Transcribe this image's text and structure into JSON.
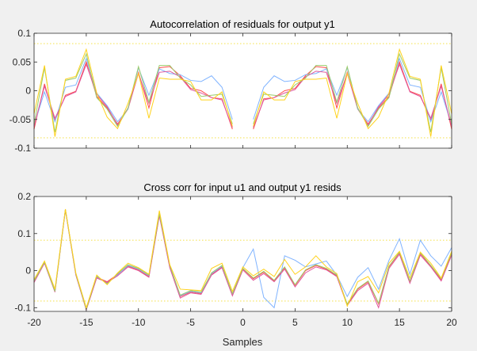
{
  "colors": {
    "background": "#f0f0f0",
    "axes_face": "#ffffff",
    "axis": "#262626",
    "confidence_line": "#f5e45a"
  },
  "chart_data": [
    {
      "type": "line",
      "title": "Autocorrelation of residuals for output y1",
      "xlabel": "",
      "ylabel": "",
      "xlim": [
        -20,
        20
      ],
      "ylim": [
        -0.1,
        0.1
      ],
      "xticks": [],
      "yticks": [
        -0.1,
        -0.05,
        0,
        0.05,
        0.1
      ],
      "ytick_labels": [
        "-0.1",
        "-0.05",
        "0",
        "0.05",
        "0.1"
      ],
      "grid": false,
      "confidence_bound": 0.082,
      "series_gap_x": 0,
      "x": [
        -20,
        -19,
        -18,
        -17,
        -16,
        -15,
        -14,
        -13,
        -12,
        -11,
        -10,
        -9,
        -8,
        -7,
        -6,
        -5,
        -4,
        -3,
        -2,
        -1,
        0,
        1,
        2,
        3,
        4,
        5,
        6,
        7,
        8,
        9,
        10,
        11,
        12,
        13,
        14,
        15,
        16,
        17,
        18,
        19,
        20
      ],
      "series": [
        {
          "color": "#ff4d4d",
          "values": [
            -0.067,
            0.012,
            -0.052,
            -0.008,
            -0.001,
            0.05,
            -0.01,
            -0.03,
            -0.058,
            -0.032,
            0.032,
            -0.03,
            0.04,
            0.042,
            0.026,
            0.004,
            0.0,
            -0.012,
            -0.014,
            -0.067,
            null,
            -0.067,
            -0.014,
            -0.012,
            0.0,
            0.004,
            0.026,
            0.042,
            0.04,
            -0.03,
            0.032,
            -0.032,
            -0.058,
            -0.03,
            -0.01,
            0.05,
            -0.001,
            -0.008,
            -0.052,
            0.012,
            -0.067
          ]
        },
        {
          "color": "#7fb3ff",
          "values": [
            -0.06,
            -0.002,
            -0.054,
            0.006,
            0.01,
            0.056,
            -0.004,
            -0.026,
            -0.054,
            -0.032,
            0.04,
            -0.008,
            0.038,
            0.03,
            0.028,
            0.018,
            0.016,
            0.026,
            0.006,
            -0.05,
            null,
            -0.05,
            0.006,
            0.026,
            0.016,
            0.018,
            0.028,
            0.03,
            0.038,
            -0.008,
            0.04,
            -0.032,
            -0.054,
            -0.026,
            -0.004,
            0.056,
            0.01,
            0.006,
            -0.054,
            -0.002,
            -0.06
          ]
        },
        {
          "color": "#e0559a",
          "values": [
            -0.062,
            0.008,
            -0.048,
            -0.01,
            -0.002,
            0.046,
            -0.006,
            -0.028,
            -0.06,
            -0.03,
            0.03,
            -0.022,
            0.032,
            0.034,
            0.024,
            0.002,
            -0.004,
            -0.012,
            -0.016,
            -0.064,
            null,
            -0.064,
            -0.016,
            -0.012,
            -0.004,
            0.002,
            0.024,
            0.034,
            0.032,
            -0.022,
            0.03,
            -0.03,
            -0.06,
            -0.028,
            -0.006,
            0.046,
            -0.002,
            -0.01,
            -0.048,
            0.008,
            -0.062
          ]
        },
        {
          "color": "#9bcc6b",
          "values": [
            -0.058,
            0.04,
            -0.072,
            0.018,
            0.022,
            0.064,
            -0.012,
            -0.032,
            -0.062,
            -0.03,
            0.042,
            -0.02,
            0.044,
            0.044,
            0.022,
            0.01,
            -0.01,
            -0.008,
            -0.006,
            -0.058,
            null,
            -0.058,
            -0.006,
            -0.008,
            -0.01,
            0.01,
            0.022,
            0.044,
            0.044,
            -0.02,
            0.042,
            -0.03,
            -0.062,
            -0.032,
            -0.012,
            0.064,
            0.022,
            0.018,
            -0.072,
            0.04,
            -0.058
          ]
        },
        {
          "color": "#ffd21a",
          "values": [
            -0.04,
            0.044,
            -0.08,
            0.02,
            0.025,
            0.072,
            -0.004,
            -0.046,
            -0.066,
            -0.022,
            0.03,
            -0.048,
            0.022,
            0.02,
            0.02,
            0.016,
            -0.016,
            -0.016,
            -0.002,
            -0.062,
            null,
            -0.062,
            -0.002,
            -0.016,
            -0.016,
            0.016,
            0.02,
            0.02,
            0.022,
            -0.048,
            0.03,
            -0.022,
            -0.066,
            -0.046,
            -0.004,
            0.072,
            0.025,
            0.02,
            -0.08,
            0.044,
            -0.04
          ]
        }
      ]
    },
    {
      "type": "line",
      "title": "Cross corr for input u1 and output y1 resids",
      "xlabel": "Samples",
      "ylabel": "",
      "xlim": [
        -20,
        20
      ],
      "ylim": [
        -0.11,
        0.2
      ],
      "xticks": [
        -20,
        -15,
        -10,
        -5,
        0,
        5,
        10,
        15,
        20
      ],
      "xtick_labels": [
        "-20",
        "-15",
        "-10",
        "-5",
        "0",
        "5",
        "10",
        "15",
        "20"
      ],
      "yticks": [
        -0.1,
        0,
        0.1,
        0.2
      ],
      "ytick_labels": [
        "-0.1",
        "0",
        "0.1",
        "0.2"
      ],
      "grid": false,
      "confidence_bound": 0.082,
      "x": [
        -20,
        -19,
        -18,
        -17,
        -16,
        -15,
        -14,
        -13,
        -12,
        -11,
        -10,
        -9,
        -8,
        -7,
        -6,
        -5,
        -4,
        -3,
        -2,
        -1,
        0,
        1,
        2,
        3,
        4,
        5,
        6,
        7,
        8,
        9,
        10,
        11,
        12,
        13,
        14,
        15,
        16,
        17,
        18,
        19,
        20
      ],
      "series": [
        {
          "color": "#ff4d4d",
          "values": [
            -0.03,
            0.022,
            -0.055,
            0.165,
            -0.01,
            -0.105,
            -0.018,
            -0.03,
            -0.01,
            0.012,
            0.002,
            -0.016,
            0.15,
            0.01,
            -0.07,
            -0.058,
            -0.062,
            -0.01,
            0.01,
            -0.065,
            0.005,
            -0.022,
            -0.004,
            -0.028,
            0.008,
            -0.04,
            0.0,
            0.014,
            0.004,
            -0.014,
            -0.092,
            -0.05,
            -0.03,
            -0.09,
            0.01,
            0.048,
            -0.03,
            0.046,
            0.012,
            -0.025,
            0.045
          ]
        },
        {
          "color": "#7fb3ff",
          "values": [
            -0.026,
            0.024,
            -0.054,
            0.165,
            -0.008,
            -0.102,
            -0.016,
            -0.034,
            -0.012,
            0.014,
            0.004,
            -0.014,
            0.152,
            0.012,
            -0.068,
            -0.056,
            -0.06,
            -0.008,
            0.012,
            -0.066,
            0.008,
            0.058,
            -0.072,
            -0.1,
            0.04,
            0.028,
            0.01,
            0.018,
            0.026,
            -0.012,
            -0.07,
            -0.018,
            0.008,
            -0.05,
            0.028,
            0.086,
            -0.01,
            0.082,
            0.04,
            0.012,
            0.062
          ]
        },
        {
          "color": "#e0559a",
          "values": [
            -0.032,
            0.02,
            -0.058,
            0.163,
            -0.012,
            -0.106,
            -0.02,
            -0.032,
            -0.014,
            0.01,
            0.0,
            -0.018,
            0.148,
            0.008,
            -0.074,
            -0.06,
            -0.064,
            -0.012,
            0.008,
            -0.068,
            0.002,
            -0.026,
            -0.008,
            -0.03,
            0.004,
            -0.044,
            -0.006,
            0.01,
            0.002,
            -0.016,
            -0.094,
            -0.054,
            -0.034,
            -0.1,
            0.006,
            0.044,
            -0.034,
            0.042,
            0.01,
            -0.028,
            0.042
          ]
        },
        {
          "color": "#9bcc6b",
          "values": [
            -0.028,
            0.023,
            -0.056,
            0.164,
            -0.009,
            -0.104,
            -0.014,
            -0.036,
            -0.008,
            0.016,
            0.006,
            -0.012,
            0.154,
            0.014,
            -0.066,
            -0.054,
            -0.058,
            -0.006,
            0.014,
            -0.062,
            0.006,
            -0.02,
            -0.002,
            -0.026,
            0.01,
            -0.038,
            0.002,
            0.016,
            0.006,
            -0.012,
            -0.09,
            -0.048,
            -0.028,
            -0.088,
            0.012,
            0.05,
            -0.028,
            0.048,
            0.014,
            -0.022,
            0.048
          ]
        },
        {
          "color": "#ffd21a",
          "values": [
            -0.024,
            0.026,
            -0.05,
            0.166,
            -0.006,
            -0.1,
            -0.012,
            -0.038,
            -0.006,
            0.02,
            0.008,
            -0.01,
            0.162,
            0.016,
            -0.05,
            -0.052,
            -0.054,
            0.006,
            0.02,
            -0.056,
            0.01,
            -0.014,
            0.004,
            -0.016,
            0.03,
            -0.01,
            0.01,
            0.04,
            0.01,
            -0.008,
            -0.096,
            -0.03,
            -0.016,
            -0.06,
            0.02,
            0.052,
            -0.02,
            0.05,
            0.02,
            -0.02,
            0.052
          ]
        }
      ]
    }
  ]
}
